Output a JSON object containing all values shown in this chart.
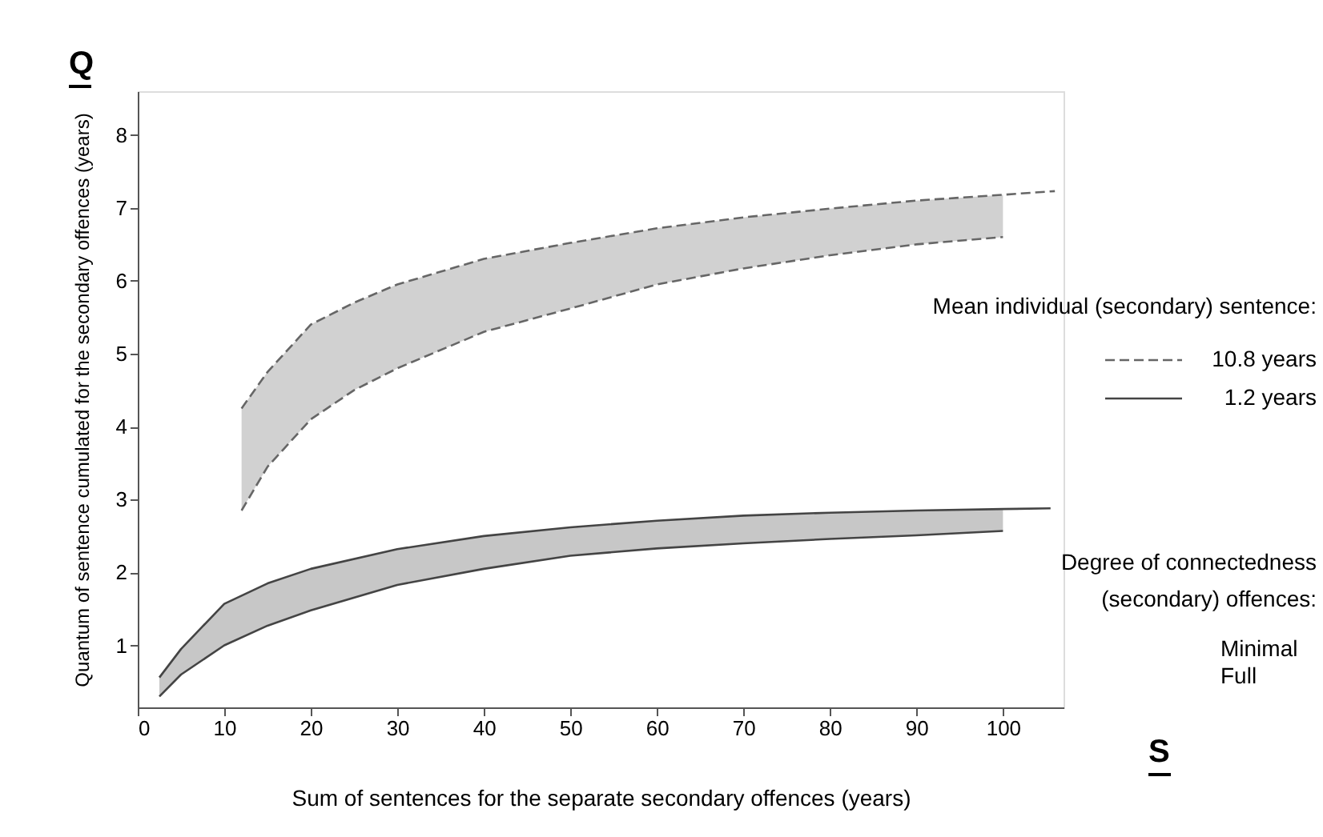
{
  "chart_data": {
    "type": "line",
    "xlabel": "Sum of sentences for the separate secondary offences (years)",
    "ylabel": "Quantum of sentence cumulated for the secondary offences (years)",
    "legend_title": "Mean individual (secondary) sentence:",
    "annotations": [
      "Q",
      "S",
      "Degree of connectedness",
      "(secondary) offences:",
      "Minimal",
      "Full"
    ],
    "xlim": [
      0,
      107
    ],
    "xticks": [
      0,
      10,
      20,
      30,
      40,
      50,
      60,
      70,
      80,
      90,
      100
    ],
    "ylim": [
      0.15,
      8.6
    ],
    "yticks": [
      1,
      2,
      3,
      4,
      5,
      6,
      7,
      8
    ],
    "grid": false,
    "legend": "right",
    "marker": "none",
    "series": [
      {
        "name": "10.8 years",
        "color": "#666666",
        "line_style": "dashed",
        "x": [
          12,
          15,
          20,
          25,
          30,
          40,
          50,
          60,
          70,
          80,
          90,
          100,
          106
        ],
        "values": [
          4.25,
          4.75,
          5.4,
          5.7,
          5.95,
          6.3,
          6.52,
          6.72,
          6.87,
          6.99,
          7.1,
          7.18,
          7.23
        ],
        "lower": [
          2.85,
          3.45,
          4.1,
          4.5,
          4.8,
          5.3,
          5.62,
          5.95,
          6.17,
          6.35,
          6.5,
          6.6,
          null
        ],
        "upper": [
          4.25,
          4.75,
          5.4,
          5.7,
          5.95,
          6.3,
          6.52,
          6.72,
          6.87,
          6.99,
          7.1,
          7.18,
          null
        ]
      },
      {
        "color": "#666666",
        "line_style": "dashed",
        "x": [
          12,
          15,
          20,
          25,
          30,
          40,
          50,
          60,
          70,
          80,
          90,
          100
        ],
        "values": [
          2.85,
          3.45,
          4.1,
          4.5,
          4.8,
          5.3,
          5.62,
          5.95,
          6.17,
          6.35,
          6.5,
          6.6
        ]
      },
      {
        "name": "1.2 years",
        "color": "#444444",
        "line_style": "solid",
        "x": [
          2.5,
          5,
          10,
          15,
          20,
          30,
          40,
          50,
          60,
          70,
          80,
          90,
          100,
          105.5
        ],
        "values": [
          0.56,
          0.95,
          1.57,
          1.85,
          2.05,
          2.32,
          2.5,
          2.62,
          2.71,
          2.78,
          2.82,
          2.85,
          2.87,
          2.88
        ],
        "lower": [
          0.3,
          0.6,
          1.0,
          1.27,
          1.48,
          1.83,
          2.05,
          2.23,
          2.33,
          2.4,
          2.46,
          2.51,
          2.57,
          null
        ],
        "upper": [
          0.56,
          0.95,
          1.57,
          1.85,
          2.05,
          2.32,
          2.5,
          2.62,
          2.71,
          2.78,
          2.82,
          2.85,
          2.87,
          null
        ]
      },
      {
        "color": "#444444",
        "line_style": "solid",
        "x": [
          2.5,
          5,
          10,
          15,
          20,
          30,
          40,
          50,
          60,
          70,
          80,
          90,
          100
        ],
        "values": [
          0.3,
          0.6,
          1.0,
          1.27,
          1.48,
          1.83,
          2.05,
          2.23,
          2.33,
          2.4,
          2.46,
          2.51,
          2.57
        ]
      }
    ]
  }
}
